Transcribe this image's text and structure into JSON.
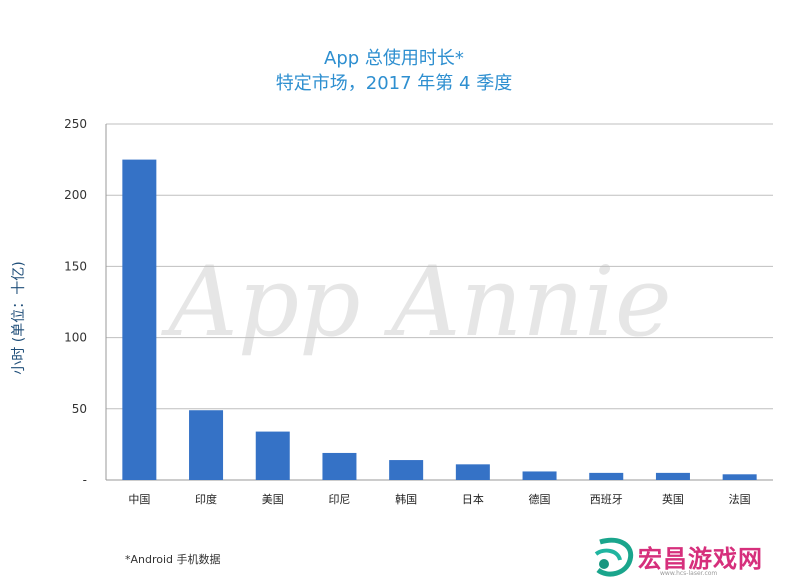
{
  "title": {
    "line1": "App 总使用时长*",
    "line2": "特定市场，2017 年第 4 季度"
  },
  "footnote": "*Android 手机数据",
  "watermark": "App Annie",
  "brand": {
    "name": "宏昌游戏网",
    "url": "www.hcs-laser.com"
  },
  "colors": {
    "bar": "#3572c6",
    "title": "#2e8fd0",
    "grid": "#bfbfbf",
    "ylabel": "#1f4e79"
  },
  "chart_data": {
    "type": "bar",
    "categories": [
      "中国",
      "印度",
      "美国",
      "印尼",
      "韩国",
      "日本",
      "德国",
      "西班牙",
      "英国",
      "法国"
    ],
    "values": [
      225,
      49,
      34,
      19,
      14,
      11,
      6,
      5,
      5,
      4
    ],
    "ylabel": "小时 (单位：十亿)",
    "ylim": [
      0,
      250
    ],
    "yticks": [
      0,
      50,
      100,
      150,
      200,
      250
    ],
    "ytick_labels": [
      "-",
      "50",
      "100",
      "150",
      "200",
      "250"
    ],
    "grid": true
  }
}
